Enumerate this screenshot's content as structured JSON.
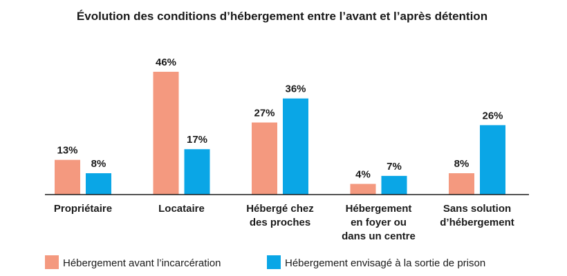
{
  "chart_data": {
    "type": "bar",
    "title": "Évolution des conditions d’hébergement entre l’avant et l’après détention",
    "xlabel": "",
    "ylabel": "",
    "ylim": [
      0,
      46
    ],
    "grid": false,
    "legend_position": "bottom",
    "categories": [
      [
        "Propriétaire"
      ],
      [
        "Locataire"
      ],
      [
        "Hébergé chez",
        "des proches"
      ],
      [
        "Hébergement",
        "en foyer ou",
        "dans un centre"
      ],
      [
        "Sans solution",
        "d’hébergement"
      ]
    ],
    "series": [
      {
        "name": "Hébergement avant l’incarcération",
        "color": "#f4997f",
        "values": [
          13,
          46,
          27,
          4,
          8
        ],
        "labels": [
          "13%",
          "46%",
          "27%",
          "4%",
          "8%"
        ]
      },
      {
        "name": "Hébergement envisagé à la sortie de prison",
        "color": "#0aa6e6",
        "values": [
          8,
          17,
          36,
          7,
          26
        ],
        "labels": [
          "8%",
          "17%",
          "36%",
          "7%",
          "26%"
        ]
      }
    ]
  }
}
